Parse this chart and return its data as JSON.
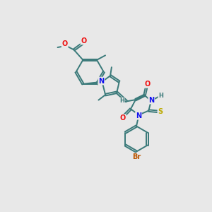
{
  "bg_color": "#e8e8e8",
  "bond_color": "#3a7a7a",
  "bond_width": 1.4,
  "dbo": 0.055,
  "atom_colors": {
    "O": "#ee1111",
    "N": "#1111ee",
    "S": "#bbaa00",
    "Br": "#bb5500",
    "H": "#3a7a7a",
    "C": "#3a7a7a"
  },
  "fs": 7.0,
  "fss": 6.0
}
